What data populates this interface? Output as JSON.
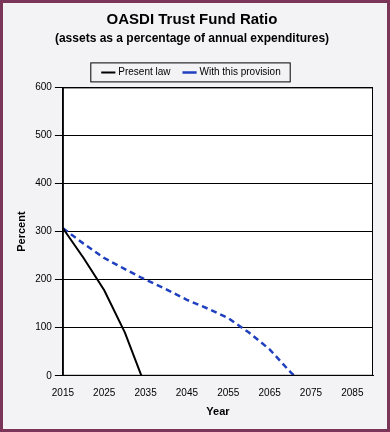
{
  "chart_data": {
    "type": "line",
    "title": "OASDI Trust Fund Ratio",
    "subtitle": "(assets as a percentage of annual expenditures)",
    "x_label": "Year",
    "y_label": "Percent",
    "x": [
      2015,
      2020,
      2025,
      2030,
      2034,
      2035,
      2040,
      2045,
      2050,
      2055,
      2060,
      2065,
      2070,
      2071
    ],
    "series": [
      {
        "name": "Present law",
        "color": "#000000",
        "line_style": "solid",
        "marker": "none",
        "values": [
          307,
          245,
          178,
          90,
          0,
          null,
          null,
          null,
          null,
          null,
          null,
          null,
          null,
          null
        ]
      },
      {
        "name": "With this provision",
        "color": "#1f3fbf",
        "line_style": "dashed",
        "marker": "none",
        "values": [
          307,
          275,
          245,
          222,
          204,
          200,
          180,
          158,
          140,
          120,
          90,
          55,
          8,
          0
        ]
      }
    ],
    "xlim": [
      2015,
      2090
    ],
    "xticks": [
      2015,
      2025,
      2035,
      2045,
      2055,
      2065,
      2075,
      2085
    ],
    "ylim": [
      0,
      600
    ],
    "yticks": [
      0,
      100,
      200,
      300,
      400,
      500,
      600
    ],
    "grid": true,
    "legend": "top"
  }
}
